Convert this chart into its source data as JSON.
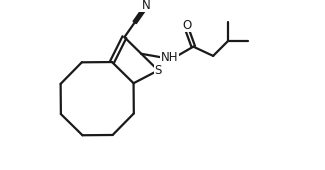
{
  "bg_color": "#ffffff",
  "line_color": "#1a1a1a",
  "line_width": 1.6,
  "figsize": [
    3.25,
    1.7
  ],
  "dpi": 100,
  "xlim": [
    0,
    10
  ],
  "ylim": [
    0,
    5.2
  ]
}
